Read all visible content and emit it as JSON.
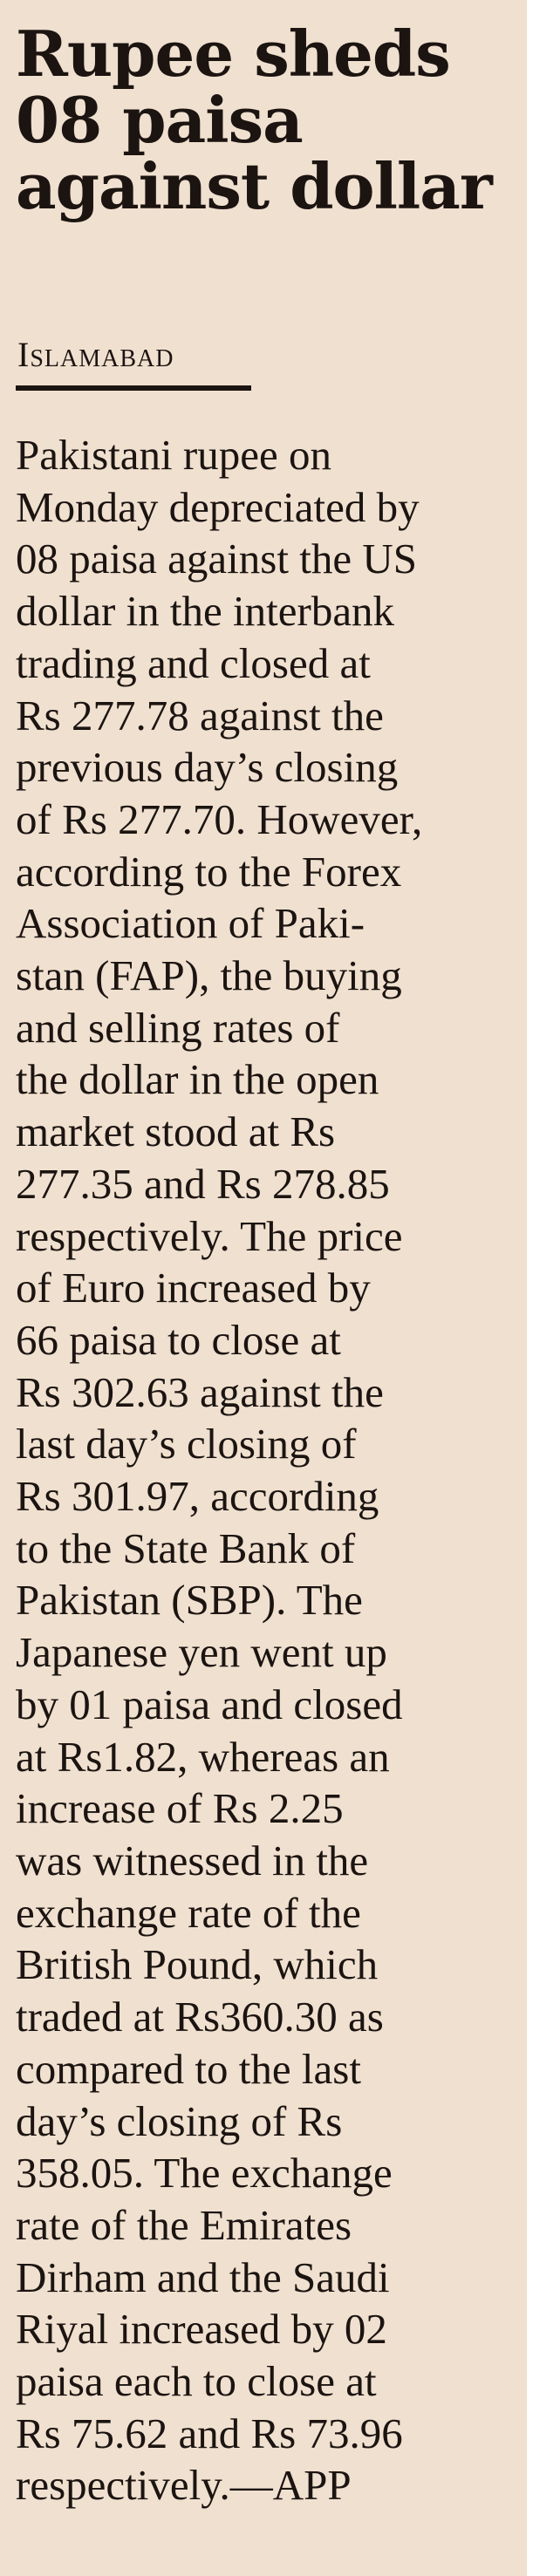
{
  "article": {
    "headline": "Rupee sheds\n08 paisa\nagainst dollar",
    "dateline": "Islamabad",
    "body": "Pakistani rupee on\nMonday depreciated by\n08 paisa against the US\ndollar in the interbank\ntrading and closed at\nRs 277.78 against the\nprevious day’s closing\nof Rs 277.70. However,\naccording to the Forex\nAssociation of Paki-\nstan (FAP), the buying\nand selling rates of\nthe dollar in the open\nmarket stood at Rs\n277.35 and Rs 278.85\nrespectively. The price\nof Euro increased by\n66 paisa to close at\nRs 302.63 against the\nlast day’s closing of\nRs 301.97, according\nto the State Bank of\nPakistan (SBP). The\nJapanese yen went up\nby 01 paisa and closed\nat Rs1.82, whereas an\nincrease of Rs 2.25\nwas witnessed in the\nexchange rate of the\nBritish Pound, which\ntraded at Rs360.30 as\ncompared to the last\nday’s closing of Rs\n358.05. The exchange\nrate of the Emirates\nDirham and the Saudi\nRiyal increased by 02\npaisa each to close at\nRs 75.62 and Rs 73.96\nrespectively.—APP"
  },
  "colors": {
    "background": "#f0e0cf",
    "text": "#1b1411"
  }
}
